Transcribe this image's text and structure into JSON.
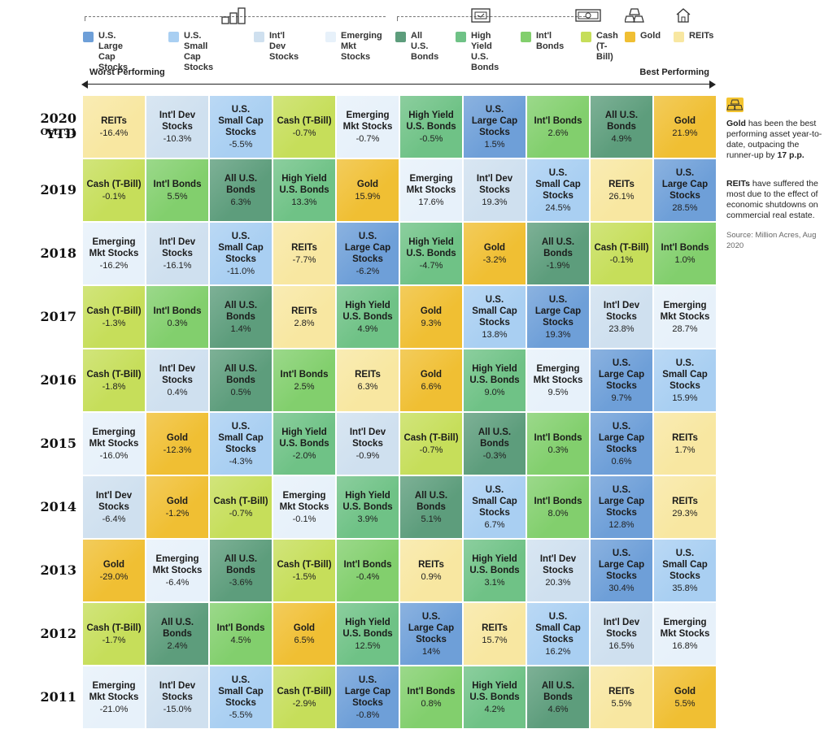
{
  "legend": [
    {
      "key": "us_large",
      "label": "U.S. Large Cap\nStocks",
      "color": "#6e9fd8"
    },
    {
      "key": "us_small",
      "label": "U.S. Small Cap\nStocks",
      "color": "#a9cff2"
    },
    {
      "key": "intl_dev",
      "label": "Int'l Dev\nStocks",
      "color": "#cfe0ef"
    },
    {
      "key": "em",
      "label": "Emerging Mkt\nStocks",
      "color": "#e7f1fa"
    },
    {
      "key": "all_bonds",
      "label": "All U.S.\nBonds",
      "color": "#5d9d7c"
    },
    {
      "key": "hy",
      "label": "High Yield\nU.S. Bonds",
      "color": "#6fc286"
    },
    {
      "key": "intl_bonds",
      "label": "Int'l\nBonds",
      "color": "#82cf6d"
    },
    {
      "key": "cash",
      "label": "Cash\n(T-Bill)",
      "color": "#c6de5a"
    },
    {
      "key": "gold",
      "label": "Gold",
      "color": "#f0bf33"
    },
    {
      "key": "reits",
      "label": "REITs",
      "color": "#f8e7a1"
    }
  ],
  "axis": {
    "worst": "Worst Performing",
    "best": "Best Performing"
  },
  "names": {
    "us_large": "U.S.\nLarge Cap\nStocks",
    "us_small": "U.S.\nSmall Cap\nStocks",
    "intl_dev": "Int'l Dev\nStocks",
    "em": "Emerging\nMkt Stocks",
    "all_bonds": "All U.S.\nBonds",
    "hy": "High Yield\nU.S. Bonds",
    "intl_bonds": "Int'l Bonds",
    "cash": "Cash (T-Bill)",
    "gold": "Gold",
    "reits": "REITs"
  },
  "chart_data": {
    "type": "table",
    "rows": [
      {
        "year": "2020 YTD",
        "sub": "Oct. 31",
        "cells": [
          [
            "reits",
            "-16.4%"
          ],
          [
            "intl_dev",
            "-10.3%"
          ],
          [
            "us_small",
            "-5.5%"
          ],
          [
            "cash",
            "-0.7%"
          ],
          [
            "em",
            "-0.7%"
          ],
          [
            "hy",
            "-0.5%"
          ],
          [
            "us_large",
            "1.5%"
          ],
          [
            "intl_bonds",
            "2.6%"
          ],
          [
            "all_bonds",
            "4.9%"
          ],
          [
            "gold",
            "21.9%"
          ]
        ]
      },
      {
        "year": "2019",
        "sub": "",
        "cells": [
          [
            "cash",
            "-0.1%"
          ],
          [
            "intl_bonds",
            "5.5%"
          ],
          [
            "all_bonds",
            "6.3%"
          ],
          [
            "hy",
            "13.3%"
          ],
          [
            "gold",
            "15.9%"
          ],
          [
            "em",
            "17.6%"
          ],
          [
            "intl_dev",
            "19.3%"
          ],
          [
            "us_small",
            "24.5%"
          ],
          [
            "reits",
            "26.1%"
          ],
          [
            "us_large",
            "28.5%"
          ]
        ]
      },
      {
        "year": "2018",
        "sub": "",
        "cells": [
          [
            "em",
            "-16.2%"
          ],
          [
            "intl_dev",
            "-16.1%"
          ],
          [
            "us_small",
            "-11.0%"
          ],
          [
            "reits",
            "-7.7%"
          ],
          [
            "us_large",
            "-6.2%"
          ],
          [
            "hy",
            "-4.7%"
          ],
          [
            "gold",
            "-3.2%"
          ],
          [
            "all_bonds",
            "-1.9%"
          ],
          [
            "cash",
            "-0.1%"
          ],
          [
            "intl_bonds",
            "1.0%"
          ]
        ]
      },
      {
        "year": "2017",
        "sub": "",
        "cells": [
          [
            "cash",
            "-1.3%"
          ],
          [
            "intl_bonds",
            "0.3%"
          ],
          [
            "all_bonds",
            "1.4%"
          ],
          [
            "reits",
            "2.8%"
          ],
          [
            "hy",
            "4.9%"
          ],
          [
            "gold",
            "9.3%"
          ],
          [
            "us_small",
            "13.8%"
          ],
          [
            "us_large",
            "19.3%"
          ],
          [
            "intl_dev",
            "23.8%"
          ],
          [
            "em",
            "28.7%"
          ]
        ]
      },
      {
        "year": "2016",
        "sub": "",
        "cells": [
          [
            "cash",
            "-1.8%"
          ],
          [
            "intl_dev",
            "0.4%"
          ],
          [
            "all_bonds",
            "0.5%"
          ],
          [
            "intl_bonds",
            "2.5%"
          ],
          [
            "reits",
            "6.3%"
          ],
          [
            "gold",
            "6.6%"
          ],
          [
            "hy",
            "9.0%"
          ],
          [
            "em",
            "9.5%"
          ],
          [
            "us_large",
            "9.7%"
          ],
          [
            "us_small",
            "15.9%"
          ]
        ]
      },
      {
        "year": "2015",
        "sub": "",
        "cells": [
          [
            "em",
            "-16.0%"
          ],
          [
            "gold",
            "-12.3%"
          ],
          [
            "us_small",
            "-4.3%"
          ],
          [
            "hy",
            "-2.0%"
          ],
          [
            "intl_dev",
            "-0.9%"
          ],
          [
            "cash",
            "-0.7%"
          ],
          [
            "all_bonds",
            "-0.3%"
          ],
          [
            "intl_bonds",
            "0.3%"
          ],
          [
            "us_large",
            "0.6%"
          ],
          [
            "reits",
            "1.7%"
          ]
        ]
      },
      {
        "year": "2014",
        "sub": "",
        "cells": [
          [
            "intl_dev",
            "-6.4%"
          ],
          [
            "gold",
            "-1.2%"
          ],
          [
            "cash",
            "-0.7%"
          ],
          [
            "em",
            "-0.1%"
          ],
          [
            "hy",
            "3.9%"
          ],
          [
            "all_bonds",
            "5.1%"
          ],
          [
            "us_small",
            "6.7%"
          ],
          [
            "intl_bonds",
            "8.0%"
          ],
          [
            "us_large",
            "12.8%"
          ],
          [
            "reits",
            "29.3%"
          ]
        ]
      },
      {
        "year": "2013",
        "sub": "",
        "cells": [
          [
            "gold",
            "-29.0%"
          ],
          [
            "em",
            "-6.4%"
          ],
          [
            "all_bonds",
            "-3.6%"
          ],
          [
            "cash",
            "-1.5%"
          ],
          [
            "intl_bonds",
            "-0.4%"
          ],
          [
            "reits",
            "0.9%"
          ],
          [
            "hy",
            "3.1%"
          ],
          [
            "intl_dev",
            "20.3%"
          ],
          [
            "us_large",
            "30.4%"
          ],
          [
            "us_small",
            "35.8%"
          ]
        ]
      },
      {
        "year": "2012",
        "sub": "",
        "cells": [
          [
            "cash",
            "-1.7%"
          ],
          [
            "all_bonds",
            "2.4%"
          ],
          [
            "intl_bonds",
            "4.5%"
          ],
          [
            "gold",
            "6.5%"
          ],
          [
            "hy",
            "12.5%"
          ],
          [
            "us_large",
            "14%"
          ],
          [
            "reits",
            "15.7%"
          ],
          [
            "us_small",
            "16.2%"
          ],
          [
            "intl_dev",
            "16.5%"
          ],
          [
            "em",
            "16.8%"
          ]
        ]
      },
      {
        "year": "2011",
        "sub": "",
        "cells": [
          [
            "em",
            "-21.0%"
          ],
          [
            "intl_dev",
            "-15.0%"
          ],
          [
            "us_small",
            "-5.5%"
          ],
          [
            "cash",
            "-2.9%"
          ],
          [
            "us_large",
            "-0.8%"
          ],
          [
            "intl_bonds",
            "0.8%"
          ],
          [
            "hy",
            "4.2%"
          ],
          [
            "all_bonds",
            "4.6%"
          ],
          [
            "reits",
            "5.5%"
          ],
          [
            "gold",
            "5.5%"
          ]
        ]
      }
    ]
  },
  "notes": {
    "gold_bold": "Gold",
    "gold_text": " has been the best performing asset year-to-date, outpacing the runner-up by ",
    "gold_pp": "17 p.p.",
    "reits_bold": "REITs",
    "reits_text": " have suffered the most due to the effect of economic shutdowns on commercial real estate.",
    "source": "Source: Million Acres, Aug 2020"
  }
}
